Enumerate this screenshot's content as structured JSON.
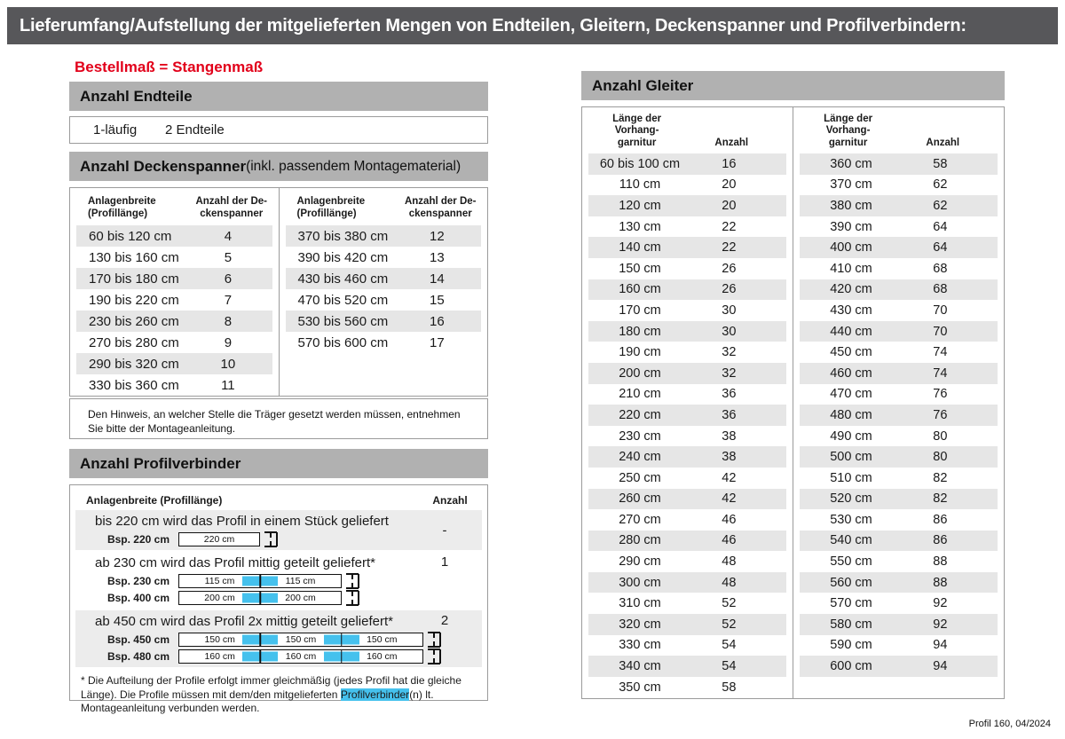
{
  "page": {
    "title": "Lieferumfang/Aufstellung der mitgelieferten Mengen von Endteilen, Gleitern, Deckenspanner und Profilverbindern:",
    "order_note": "Bestellmaß = Stangenmaß",
    "footer": "Profil 160, 04/2024"
  },
  "endteile": {
    "header": "Anzahl Endteile",
    "type": "1-läufig",
    "count": "2 Endteile"
  },
  "deckenspanner": {
    "header_bold": "Anzahl Deckenspanner",
    "header_note": " (inkl. passendem Montagematerial)",
    "col1": "Anlagenbreite\n(Profillänge)",
    "col2": "Anzahl der De-\nckenspanner",
    "left_rows": [
      [
        "60 bis 120 cm",
        "4"
      ],
      [
        "130 bis 160 cm",
        "5"
      ],
      [
        "170 bis 180 cm",
        "6"
      ],
      [
        "190 bis 220 cm",
        "7"
      ],
      [
        "230 bis 260 cm",
        "8"
      ],
      [
        "270 bis 280 cm",
        "9"
      ],
      [
        "290 bis 320 cm",
        "10"
      ],
      [
        "330 bis 360 cm",
        "11"
      ]
    ],
    "right_rows": [
      [
        "370 bis 380 cm",
        "12"
      ],
      [
        "390 bis 420 cm",
        "13"
      ],
      [
        "430 bis 460 cm",
        "14"
      ],
      [
        "470 bis 520 cm",
        "15"
      ],
      [
        "530 bis 560 cm",
        "16"
      ],
      [
        "570 bis 600 cm",
        "17"
      ]
    ],
    "note": "Den Hinweis, an welcher Stelle die Träger gesetzt werden müssen, entnehmen Sie bitte der Montageanleitung."
  },
  "profilverbinder": {
    "header": "Anzahl Profilverbinder",
    "col1": "Anlagenbreite (Profillänge)",
    "col2": "Anzahl",
    "rows": [
      {
        "text": "bis 220 cm wird das Profil in einem Stück geliefert",
        "anzahl": "-",
        "examples": [
          {
            "label": "Bsp. 220 cm",
            "segments": [
              "220 cm"
            ]
          }
        ]
      },
      {
        "text": "ab 230 cm wird das Profil mittig geteilt geliefert*",
        "anzahl": "1",
        "examples": [
          {
            "label": "Bsp. 230 cm",
            "segments": [
              "115 cm",
              "115 cm"
            ]
          },
          {
            "label": "Bsp. 400 cm",
            "segments": [
              "200 cm",
              "200 cm"
            ]
          }
        ]
      },
      {
        "text": "ab 450 cm wird das Profil 2x mittig geteilt geliefert*",
        "anzahl": "2",
        "examples": [
          {
            "label": "Bsp. 450 cm",
            "segments": [
              "150 cm",
              "150 cm",
              "150 cm"
            ]
          },
          {
            "label": "Bsp. 480 cm",
            "segments": [
              "160 cm",
              "160 cm",
              "160 cm"
            ]
          }
        ]
      }
    ],
    "footnote_pre": "* Die Aufteilung der Profile erfolgt immer gleichmäßig (jedes Profil hat die gleiche Länge). Die Profile müssen mit dem/den mitgelieferten ",
    "footnote_highlight": "Profilverbinder",
    "footnote_post": "(n) lt. Montageanleitung verbunden werden."
  },
  "gleiter": {
    "header": "Anzahl Gleiter",
    "col1": "Länge der\nVorhang-\ngarnitur",
    "col2": "Anzahl",
    "left_rows": [
      [
        "60 bis 100 cm",
        "16"
      ],
      [
        "110 cm",
        "20"
      ],
      [
        "120 cm",
        "20"
      ],
      [
        "130 cm",
        "22"
      ],
      [
        "140 cm",
        "22"
      ],
      [
        "150 cm",
        "26"
      ],
      [
        "160 cm",
        "26"
      ],
      [
        "170 cm",
        "30"
      ],
      [
        "180 cm",
        "30"
      ],
      [
        "190 cm",
        "32"
      ],
      [
        "200 cm",
        "32"
      ],
      [
        "210 cm",
        "36"
      ],
      [
        "220 cm",
        "36"
      ],
      [
        "230 cm",
        "38"
      ],
      [
        "240 cm",
        "38"
      ],
      [
        "250 cm",
        "42"
      ],
      [
        "260 cm",
        "42"
      ],
      [
        "270 cm",
        "46"
      ],
      [
        "280 cm",
        "46"
      ],
      [
        "290 cm",
        "48"
      ],
      [
        "300 cm",
        "48"
      ],
      [
        "310 cm",
        "52"
      ],
      [
        "320 cm",
        "52"
      ],
      [
        "330 cm",
        "54"
      ],
      [
        "340 cm",
        "54"
      ],
      [
        "350 cm",
        "58"
      ]
    ],
    "right_rows": [
      [
        "360 cm",
        "58"
      ],
      [
        "370 cm",
        "62"
      ],
      [
        "380 cm",
        "62"
      ],
      [
        "390 cm",
        "64"
      ],
      [
        "400 cm",
        "64"
      ],
      [
        "410 cm",
        "68"
      ],
      [
        "420 cm",
        "68"
      ],
      [
        "430 cm",
        "70"
      ],
      [
        "440 cm",
        "70"
      ],
      [
        "450 cm",
        "74"
      ],
      [
        "460 cm",
        "74"
      ],
      [
        "470 cm",
        "76"
      ],
      [
        "480 cm",
        "76"
      ],
      [
        "490 cm",
        "80"
      ],
      [
        "500 cm",
        "80"
      ],
      [
        "510 cm",
        "82"
      ],
      [
        "520 cm",
        "82"
      ],
      [
        "530 cm",
        "86"
      ],
      [
        "540 cm",
        "86"
      ],
      [
        "550 cm",
        "88"
      ],
      [
        "560 cm",
        "88"
      ],
      [
        "570 cm",
        "92"
      ],
      [
        "580 cm",
        "92"
      ],
      [
        "590 cm",
        "94"
      ],
      [
        "600 cm",
        "94"
      ]
    ]
  },
  "colors": {
    "title_bar": "#57575a",
    "section_bar": "#b1b1b1",
    "row_shade": "#e6e6e6",
    "block_shade": "#ececec",
    "accent_red": "#e2001a",
    "highlight_cyan": "#45c1ed",
    "border_gray": "#9b9b9b"
  }
}
